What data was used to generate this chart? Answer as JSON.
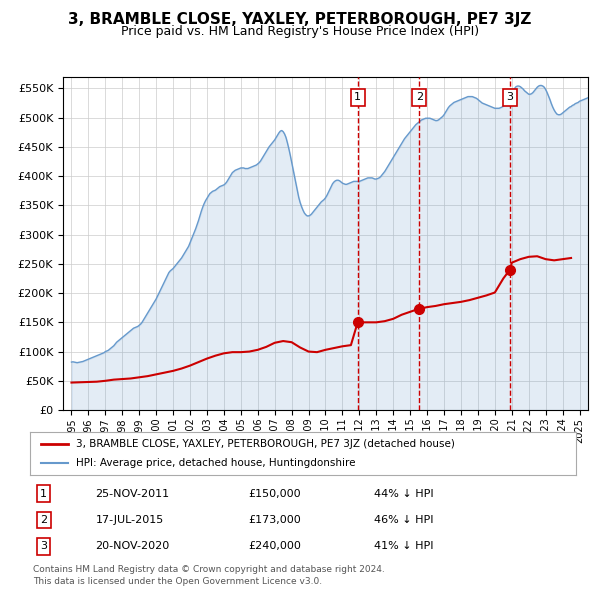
{
  "title": "3, BRAMBLE CLOSE, YAXLEY, PETERBOROUGH, PE7 3JZ",
  "subtitle": "Price paid vs. HM Land Registry's House Price Index (HPI)",
  "legend_line1": "3, BRAMBLE CLOSE, YAXLEY, PETERBOROUGH, PE7 3JZ (detached house)",
  "legend_line2": "HPI: Average price, detached house, Huntingdonshire",
  "footer1": "Contains HM Land Registry data © Crown copyright and database right 2024.",
  "footer2": "This data is licensed under the Open Government Licence v3.0.",
  "sales": [
    {
      "num": 1,
      "date": "25-NOV-2011",
      "price": 150000,
      "year": 2011.9,
      "pct": "44%",
      "dir": "↓"
    },
    {
      "num": 2,
      "date": "17-JUL-2015",
      "price": 173000,
      "year": 2015.54,
      "pct": "46%",
      "dir": "↓"
    },
    {
      "num": 3,
      "date": "20-NOV-2020",
      "price": 240000,
      "year": 2020.89,
      "pct": "41%",
      "dir": "↓"
    }
  ],
  "hpi_color": "#6699cc",
  "property_color": "#cc0000",
  "sale_marker_color": "#cc0000",
  "vline_color": "#cc0000",
  "bg_color": "#ffffff",
  "grid_color": "#cccccc",
  "ylim": [
    0,
    570000
  ],
  "yticks": [
    0,
    50000,
    100000,
    150000,
    200000,
    250000,
    300000,
    350000,
    400000,
    450000,
    500000,
    550000
  ],
  "xlim": [
    1994.5,
    2025.5
  ],
  "hpi_data_y": [
    82000,
    82500,
    82000,
    81500,
    81000,
    81500,
    82000,
    82500,
    83000,
    84000,
    85000,
    86000,
    87000,
    88000,
    89000,
    90000,
    91000,
    92000,
    93000,
    94000,
    95000,
    96000,
    97000,
    98000,
    100000,
    101000,
    102000,
    104000,
    106000,
    108000,
    110000,
    113000,
    116000,
    118000,
    120000,
    122000,
    124000,
    126000,
    128000,
    130000,
    132000,
    134000,
    136000,
    138000,
    140000,
    141000,
    142000,
    143000,
    145000,
    147000,
    150000,
    154000,
    158000,
    162000,
    166000,
    170000,
    174000,
    178000,
    182000,
    186000,
    190000,
    195000,
    200000,
    205000,
    210000,
    215000,
    220000,
    225000,
    230000,
    235000,
    238000,
    240000,
    242000,
    245000,
    248000,
    251000,
    254000,
    257000,
    260000,
    264000,
    268000,
    272000,
    276000,
    280000,
    286000,
    292000,
    298000,
    304000,
    310000,
    317000,
    324000,
    332000,
    340000,
    347000,
    353000,
    358000,
    362000,
    366000,
    370000,
    372000,
    374000,
    375000,
    376000,
    378000,
    380000,
    382000,
    383000,
    384000,
    385000,
    387000,
    390000,
    394000,
    398000,
    402000,
    406000,
    408000,
    410000,
    411000,
    412000,
    413000,
    414000,
    414000,
    414000,
    413000,
    413000,
    413000,
    414000,
    415000,
    416000,
    417000,
    418000,
    419000,
    421000,
    423000,
    426000,
    430000,
    434000,
    438000,
    442000,
    446000,
    450000,
    453000,
    456000,
    459000,
    462000,
    466000,
    470000,
    474000,
    477000,
    478000,
    476000,
    472000,
    466000,
    457000,
    447000,
    436000,
    424000,
    412000,
    400000,
    388000,
    376000,
    364000,
    355000,
    348000,
    342000,
    337000,
    334000,
    332000,
    332000,
    333000,
    335000,
    338000,
    341000,
    344000,
    347000,
    350000,
    353000,
    356000,
    358000,
    360000,
    363000,
    367000,
    372000,
    377000,
    382000,
    387000,
    390000,
    392000,
    393000,
    393000,
    392000,
    390000,
    388000,
    387000,
    386000,
    386000,
    387000,
    388000,
    389000,
    390000,
    391000,
    391000,
    391000,
    391000,
    391000,
    392000,
    393000,
    394000,
    395000,
    396000,
    397000,
    397000,
    397000,
    397000,
    396000,
    395000,
    395000,
    396000,
    397000,
    399000,
    402000,
    405000,
    408000,
    412000,
    416000,
    420000,
    424000,
    428000,
    432000,
    436000,
    440000,
    444000,
    448000,
    452000,
    456000,
    460000,
    464000,
    467000,
    470000,
    473000,
    476000,
    479000,
    482000,
    485000,
    488000,
    490000,
    492000,
    494000,
    496000,
    497000,
    498000,
    499000,
    499000,
    499000,
    499000,
    498000,
    497000,
    496000,
    495000,
    495000,
    496000,
    498000,
    500000,
    502000,
    505000,
    509000,
    513000,
    517000,
    520000,
    522000,
    524000,
    526000,
    527000,
    528000,
    529000,
    530000,
    531000,
    532000,
    533000,
    534000,
    535000,
    536000,
    536000,
    536000,
    536000,
    535000,
    534000,
    533000,
    531000,
    529000,
    527000,
    525000,
    524000,
    523000,
    522000,
    521000,
    520000,
    519000,
    518000,
    517000,
    516000,
    516000,
    516000,
    516000,
    517000,
    518000,
    520000,
    522000,
    524000,
    527000,
    531000,
    535000,
    540000,
    546000,
    550000,
    553000,
    554000,
    554000,
    553000,
    551000,
    549000,
    546000,
    544000,
    542000,
    540000,
    540000,
    541000,
    543000,
    546000,
    549000,
    552000,
    554000,
    555000,
    555000,
    554000,
    552000,
    548000,
    543000,
    537000,
    531000,
    524000,
    518000,
    513000,
    509000,
    506000,
    505000,
    505000,
    506000,
    508000,
    510000,
    512000,
    514000,
    516000,
    518000,
    519000,
    521000,
    522000,
    524000,
    525000,
    526000,
    528000,
    529000,
    530000,
    531000,
    532000,
    533000,
    534000,
    536000,
    537000,
    539000
  ],
  "prop_data_x": [
    1995.0,
    1995.5,
    1996.0,
    1996.5,
    1997.0,
    1997.5,
    1998.0,
    1998.5,
    1999.0,
    1999.5,
    2000.0,
    2000.5,
    2001.0,
    2001.5,
    2002.0,
    2002.5,
    2003.0,
    2003.5,
    2004.0,
    2004.5,
    2005.0,
    2005.5,
    2006.0,
    2006.5,
    2007.0,
    2007.5,
    2008.0,
    2008.5,
    2009.0,
    2009.5,
    2010.0,
    2010.5,
    2011.0,
    2011.5,
    2011.9,
    2012.0,
    2012.5,
    2013.0,
    2013.5,
    2014.0,
    2014.5,
    2015.0,
    2015.5,
    2015.54,
    2016.0,
    2016.5,
    2017.0,
    2017.5,
    2018.0,
    2018.5,
    2019.0,
    2019.5,
    2020.0,
    2020.5,
    2020.89,
    2021.0,
    2021.5,
    2022.0,
    2022.5,
    2023.0,
    2023.5,
    2024.0,
    2024.5
  ],
  "prop_data_y": [
    47000,
    47500,
    48000,
    48500,
    50000,
    52000,
    53000,
    54000,
    56000,
    58000,
    61000,
    64000,
    67000,
    71000,
    76000,
    82000,
    88000,
    93000,
    97000,
    99000,
    99000,
    100000,
    103000,
    108000,
    115000,
    118000,
    116000,
    107000,
    100000,
    99000,
    103000,
    106000,
    109000,
    111000,
    150000,
    150000,
    150000,
    150000,
    152000,
    156000,
    163000,
    168000,
    173000,
    173000,
    176000,
    178000,
    181000,
    183000,
    185000,
    188000,
    192000,
    196000,
    201000,
    225000,
    240000,
    252000,
    258000,
    262000,
    263000,
    258000,
    256000,
    258000,
    260000
  ]
}
